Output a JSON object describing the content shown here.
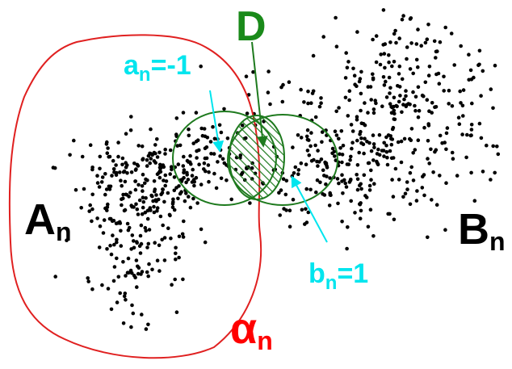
{
  "labels": {
    "D": "D",
    "A": {
      "main": "A",
      "sub": "n"
    },
    "B": {
      "main": "B",
      "sub": "n"
    },
    "alpha": {
      "main": "α",
      "sub": "n"
    },
    "a_eq": {
      "main": "a",
      "sub": "n",
      "rest": "=-1"
    },
    "b_eq": {
      "main": "b",
      "sub": "n",
      "rest": "=1"
    }
  },
  "colors": {
    "D": "#1a8a1a",
    "A": "#000000",
    "B": "#000000",
    "alpha": "#ff0000",
    "a_eq": "#00e5ee",
    "b_eq": "#00e5ee",
    "region_outline": "#e02020",
    "circles": "#1e7a1e",
    "hatch": "#1e7a1e",
    "dots": "#000000"
  }
}
